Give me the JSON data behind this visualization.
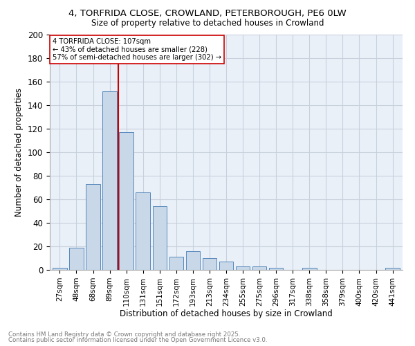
{
  "title_line1": "4, TORFRIDA CLOSE, CROWLAND, PETERBOROUGH, PE6 0LW",
  "title_line2": "Size of property relative to detached houses in Crowland",
  "xlabel": "Distribution of detached houses by size in Crowland",
  "ylabel": "Number of detached properties",
  "bar_color": "#c8d8e8",
  "bar_edge_color": "#5588bb",
  "categories": [
    "27sqm",
    "48sqm",
    "68sqm",
    "89sqm",
    "110sqm",
    "131sqm",
    "151sqm",
    "172sqm",
    "193sqm",
    "213sqm",
    "234sqm",
    "255sqm",
    "275sqm",
    "296sqm",
    "317sqm",
    "338sqm",
    "358sqm",
    "379sqm",
    "400sqm",
    "420sqm",
    "441sqm"
  ],
  "values": [
    2,
    19,
    73,
    152,
    117,
    66,
    54,
    11,
    16,
    10,
    7,
    3,
    3,
    2,
    0,
    2,
    0,
    0,
    0,
    0,
    2
  ],
  "vline_index": 3.5,
  "vline_color": "#cc0000",
  "annotation_text": "4 TORFRIDA CLOSE: 107sqm\n← 43% of detached houses are smaller (228)\n57% of semi-detached houses are larger (302) →",
  "annotation_box_color": "#ffffff",
  "annotation_box_edge": "#cc0000",
  "ylim": [
    0,
    200
  ],
  "yticks": [
    0,
    20,
    40,
    60,
    80,
    100,
    120,
    140,
    160,
    180,
    200
  ],
  "footer_line1": "Contains HM Land Registry data © Crown copyright and database right 2025.",
  "footer_line2": "Contains public sector information licensed under the Open Government Licence v3.0.",
  "background_color": "#ffffff",
  "ax_background": "#eaf0f8",
  "grid_color": "#c8d0dc"
}
